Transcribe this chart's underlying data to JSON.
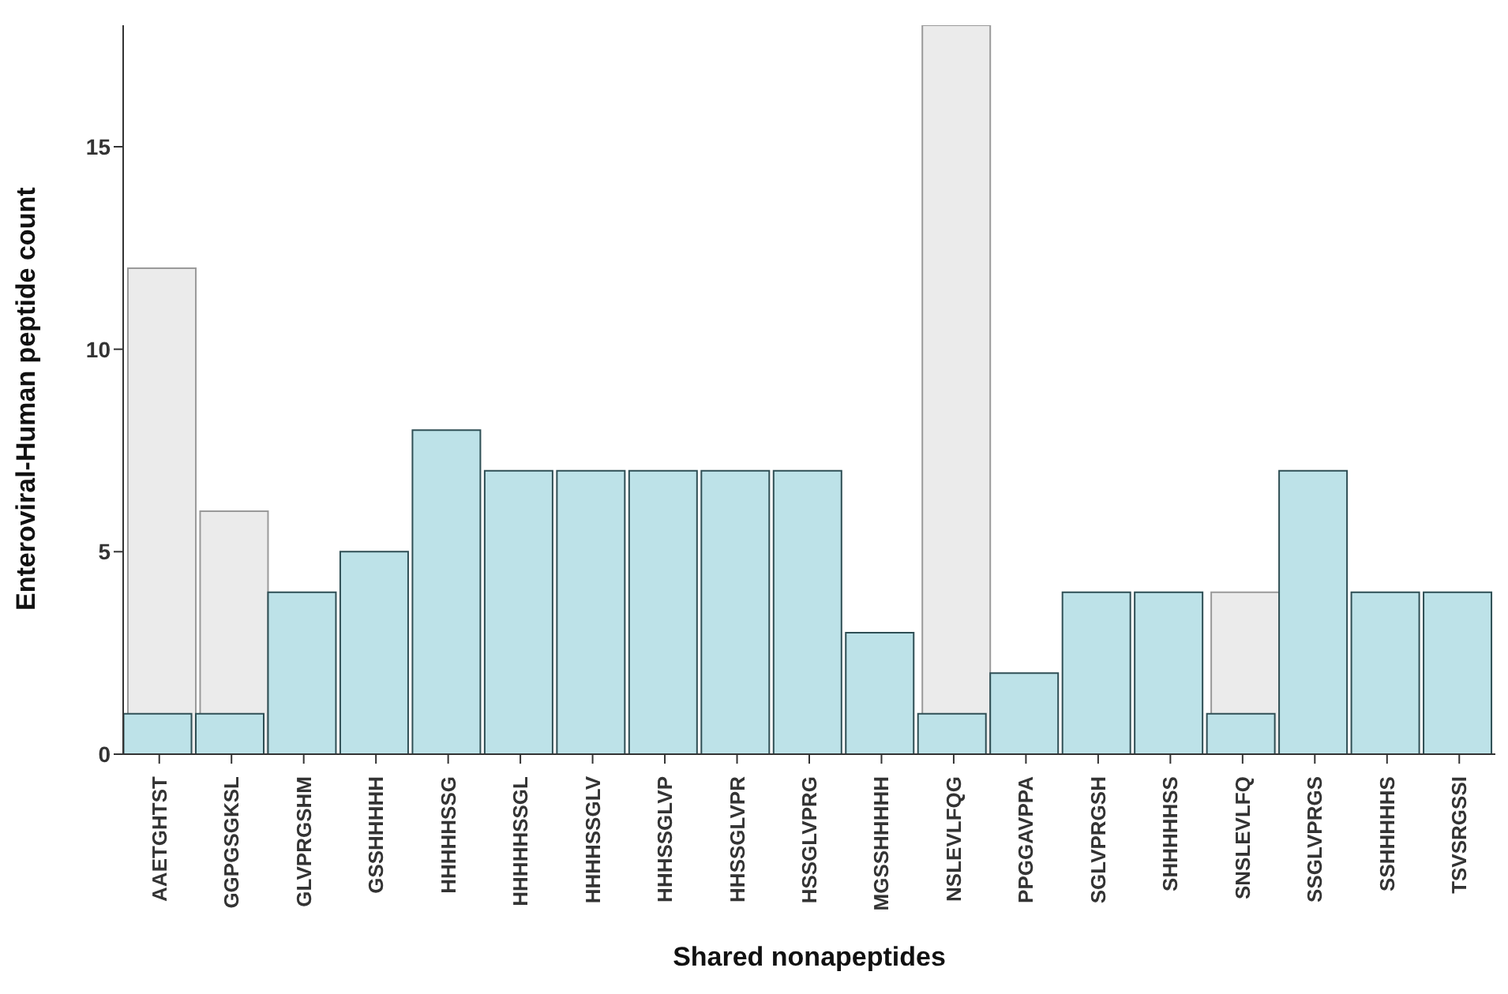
{
  "chart_data": {
    "type": "bar",
    "xlabel": "Shared nonapeptides",
    "ylabel": "Enteroviral-Human peptide count",
    "categories": [
      "AAETGHTST",
      "GGPGSGKSL",
      "GLVPRGSHM",
      "GSSHHHHH",
      "HHHHHSSG",
      "HHHHHSSGL",
      "HHHHSSGLV",
      "HHHSSGLVP",
      "HHSSGLVPR",
      "HSSGLVPRG",
      "MGSSHHHHH",
      "NSLEVLFQG",
      "PPGGAVPPA",
      "SGLVPRGSH",
      "SHHHHHSS",
      "SNSLEVLFQ",
      "SSGLVPRGS",
      "SSHHHHHS",
      "TSVSRGSSI"
    ],
    "series": [
      {
        "color": "#ebebeb",
        "values": [
          12,
          6,
          null,
          null,
          null,
          null,
          null,
          null,
          null,
          null,
          null,
          18,
          null,
          null,
          null,
          4,
          null,
          null,
          null
        ]
      },
      {
        "color": "#bde2e8",
        "values": [
          1,
          1,
          4,
          5,
          8,
          7,
          7,
          7,
          7,
          7,
          3,
          1,
          2,
          4,
          4,
          1,
          7,
          4,
          4
        ]
      }
    ],
    "ylim": [
      0,
      18
    ],
    "yticks": [
      0,
      5,
      10,
      15
    ]
  }
}
